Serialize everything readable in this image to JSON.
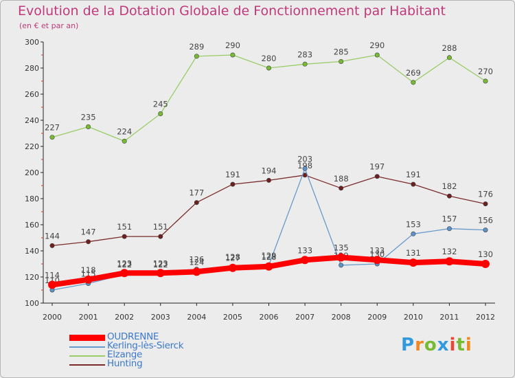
{
  "chart_data": {
    "type": "line",
    "title": "Evolution de la Dotation Globale de Fonctionnement par Habitant",
    "subtitle": "(en € et par an)",
    "xlabel": "",
    "ylabel": "",
    "categories": [
      "2000",
      "2001",
      "2002",
      "2003",
      "2004",
      "2005",
      "2006",
      "2007",
      "2008",
      "2009",
      "2010",
      "2011",
      "2012"
    ],
    "ylim": [
      100,
      300
    ],
    "yticks": [
      100,
      120,
      140,
      160,
      180,
      200,
      220,
      240,
      260,
      280,
      300
    ],
    "grid": false,
    "legend_position": "bottom-left",
    "series": [
      {
        "name": "Elzange",
        "color": "#99cc66",
        "marker": "#77bb33",
        "values": [
          227,
          235,
          224,
          245,
          289,
          290,
          280,
          283,
          285,
          290,
          269,
          288,
          270
        ],
        "labels": [
          "227",
          "235",
          "224",
          "245",
          "289",
          "290",
          "280",
          "283",
          "285",
          "290",
          "269",
          "288",
          "270"
        ]
      },
      {
        "name": "Hunting",
        "color": "#7a2a2a",
        "marker": "#6e1f1f",
        "values": [
          144,
          147,
          151,
          151,
          177,
          191,
          194,
          198,
          188,
          197,
          191,
          182,
          176
        ],
        "labels": [
          "144",
          "147",
          "151",
          "151",
          "177",
          "191",
          "194",
          "198",
          "188",
          "197",
          "191",
          "182",
          "176"
        ]
      },
      {
        "name": "Kerling-lès-Sierck",
        "color": "#6699cc",
        "marker": "#5b93c8",
        "values": [
          110,
          115,
          122,
          122,
          126,
          128,
          129,
          203,
          129,
          130,
          153,
          157,
          156
        ],
        "labels": [
          "110",
          "115",
          "122",
          "122",
          "126",
          "128",
          "129",
          "203",
          "129",
          "130",
          "153",
          "157",
          "156"
        ]
      },
      {
        "name": "OUDRENNE",
        "color": "#ff0000",
        "marker": "#ff0000",
        "values": [
          114,
          118,
          123,
          123,
          124,
          127,
          128,
          133,
          135,
          133,
          131,
          132,
          130
        ],
        "labels": [
          "114",
          "118",
          "123",
          "123",
          "124",
          "127",
          "128",
          "133",
          "135",
          "133",
          "131",
          "132",
          "130"
        ]
      }
    ]
  },
  "legend": [
    {
      "label": "OUDRENNE",
      "color": "#ff0000",
      "label_color": "#3b78c9"
    },
    {
      "label": "Kerling-lès-Sierck",
      "color": "#6699cc",
      "label_color": "#3b78c9"
    },
    {
      "label": "Elzange",
      "color": "#99cc66",
      "label_color": "#3b78c9"
    },
    {
      "label": "Hunting",
      "color": "#7a2a2a",
      "label_color": "#3b78c9"
    }
  ],
  "logo": {
    "text": "Proxiti",
    "letter_colors": [
      "#3399dd",
      "#ee8822",
      "#77bb33",
      "#3399dd",
      "#ee4433",
      "#77bb33",
      "#ee8822"
    ]
  }
}
